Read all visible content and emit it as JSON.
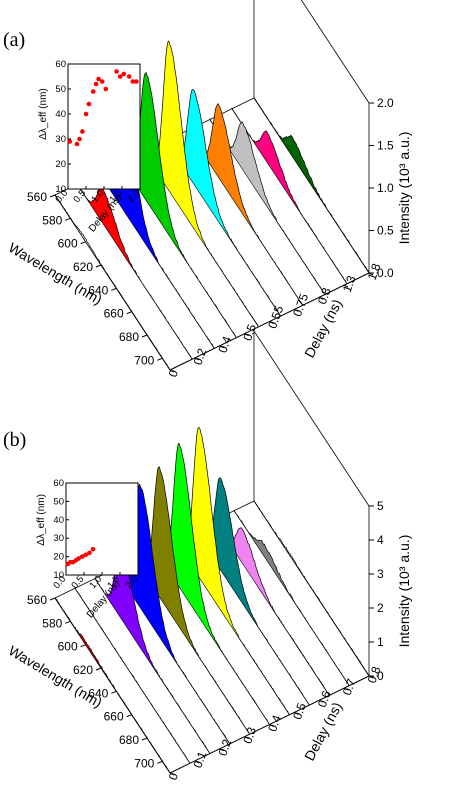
{
  "chart_data": [
    {
      "type": "area",
      "panel_label": "(a)",
      "x": {
        "label": "Wavelength (nm)",
        "ticks": [
          "560",
          "580",
          "600",
          "620",
          "640",
          "660",
          "680",
          "700"
        ],
        "range": [
          560,
          710
        ]
      },
      "y": {
        "label": "Delay (ns)",
        "ticks": [
          "0",
          "0.2",
          "0.4",
          "0.5",
          "0.55",
          "0.75",
          "0.8",
          "1.3",
          "1.8"
        ]
      },
      "z": {
        "label": "Intensity (10³ a.u.)",
        "ticks": [
          "0.0",
          "0.5",
          "1.0",
          "1.5",
          "2.0"
        ],
        "range": [
          0,
          2.0
        ]
      },
      "series": [
        {
          "delay": "0",
          "peak_nm": 595,
          "peak": 0.03,
          "color": "#ffffff"
        },
        {
          "delay": "0.2",
          "peak_nm": 593,
          "peak": 0.4,
          "color": "#ff0000"
        },
        {
          "delay": "0.4",
          "peak_nm": 591,
          "peak": 1.15,
          "color": "#0000ff"
        },
        {
          "delay": "0.5",
          "peak_nm": 592,
          "peak": 1.5,
          "color": "#00cc00"
        },
        {
          "delay": "0.55",
          "peak_nm": 593,
          "peak": 1.75,
          "color": "#ffff00"
        },
        {
          "delay": "0.75",
          "peak_nm": 596,
          "peak": 1.1,
          "color": "#00ffff"
        },
        {
          "delay": "0.8",
          "peak_nm": 600,
          "peak": 0.85,
          "color": "#ff8000"
        },
        {
          "delay": "1.3",
          "peak_nm": 603,
          "peak": 0.55,
          "color": "#c0c0c0"
        },
        {
          "delay": "1.8",
          "peak_nm": 606,
          "peak": 0.35,
          "color": "#ff0080"
        },
        {
          "delay": "",
          "peak_nm": 610,
          "peak": 0.22,
          "color": "#006400"
        }
      ],
      "inset": {
        "xlabel": "Delay (ns)",
        "ylabel": "Δλ_eff (nm)",
        "xticks": [
          "0.0",
          "0.5",
          "1.0",
          "1.5",
          "2.0"
        ],
        "yticks": [
          "10",
          "20",
          "30",
          "40",
          "50",
          "60"
        ],
        "xlim": [
          0,
          2.0
        ],
        "ylim": [
          10,
          60
        ],
        "points": [
          [
            0.05,
            29
          ],
          [
            0.25,
            28
          ],
          [
            0.32,
            30
          ],
          [
            0.4,
            33
          ],
          [
            0.5,
            40
          ],
          [
            0.58,
            44
          ],
          [
            0.7,
            49
          ],
          [
            0.78,
            52
          ],
          [
            0.85,
            54
          ],
          [
            0.95,
            53
          ],
          [
            1.05,
            50
          ],
          [
            1.35,
            57
          ],
          [
            1.45,
            55
          ],
          [
            1.55,
            56
          ],
          [
            1.7,
            55
          ],
          [
            1.8,
            53
          ],
          [
            1.9,
            53
          ]
        ]
      }
    },
    {
      "type": "area",
      "panel_label": "(b)",
      "x": {
        "label": "Wavelength (nm)",
        "ticks": [
          "560",
          "580",
          "600",
          "620",
          "640",
          "660",
          "680",
          "700"
        ],
        "range": [
          560,
          710
        ]
      },
      "y": {
        "label": "Delay (ns)",
        "ticks": [
          "0",
          "0.1",
          "0.2",
          "0.3",
          "0.4",
          "0.5",
          "0.6",
          "0.7",
          "0.8"
        ]
      },
      "z": {
        "label": "Intensity (10³ a.u.)",
        "ticks": [
          "0",
          "1",
          "2",
          "3",
          "4",
          "5"
        ],
        "range": [
          0,
          5
        ]
      },
      "series": [
        {
          "delay": "0",
          "peak_nm": 600,
          "peak": 0.1,
          "color": "#ff0000"
        },
        {
          "delay": "",
          "peak_nm": 600,
          "peak": 0.0,
          "color": "#ffffff"
        },
        {
          "delay": "0.1",
          "peak_nm": 594,
          "peak": 2.0,
          "color": "#8000ff"
        },
        {
          "delay": "",
          "peak_nm": 593,
          "peak": 3.6,
          "color": "#0000ff"
        },
        {
          "delay": "0.2",
          "peak_nm": 592,
          "peak": 3.8,
          "color": "#808000"
        },
        {
          "delay": "0.3",
          "peak_nm": 592,
          "peak": 4.2,
          "color": "#00ff00"
        },
        {
          "delay": "0.4",
          "peak_nm": 592,
          "peak": 4.4,
          "color": "#ffff00"
        },
        {
          "delay": "0.5",
          "peak_nm": 594,
          "peak": 2.7,
          "color": "#008080"
        },
        {
          "delay": "0.6",
          "peak_nm": 596,
          "peak": 1.0,
          "color": "#ee82ee"
        },
        {
          "delay": "0.7",
          "peak_nm": 598,
          "peak": 0.35,
          "color": "#808080"
        },
        {
          "delay": "0.8",
          "peak_nm": 600,
          "peak": 0.05,
          "color": "#ffffff"
        }
      ],
      "inset": {
        "xlabel": "Delay (ns)",
        "ylabel": "Δλ_eff (nm)",
        "xticks": [
          "0.0",
          "0.5",
          "1.0",
          "1.5",
          "2.0"
        ],
        "yticks": [
          "10",
          "20",
          "30",
          "40",
          "50",
          "60"
        ],
        "xlim": [
          0,
          2.0
        ],
        "ylim": [
          10,
          60
        ],
        "points": [
          [
            0.05,
            16
          ],
          [
            0.12,
            17
          ],
          [
            0.2,
            17
          ],
          [
            0.28,
            18
          ],
          [
            0.35,
            19
          ],
          [
            0.45,
            20
          ],
          [
            0.55,
            21
          ],
          [
            0.65,
            22
          ],
          [
            0.75,
            24
          ]
        ]
      }
    }
  ]
}
